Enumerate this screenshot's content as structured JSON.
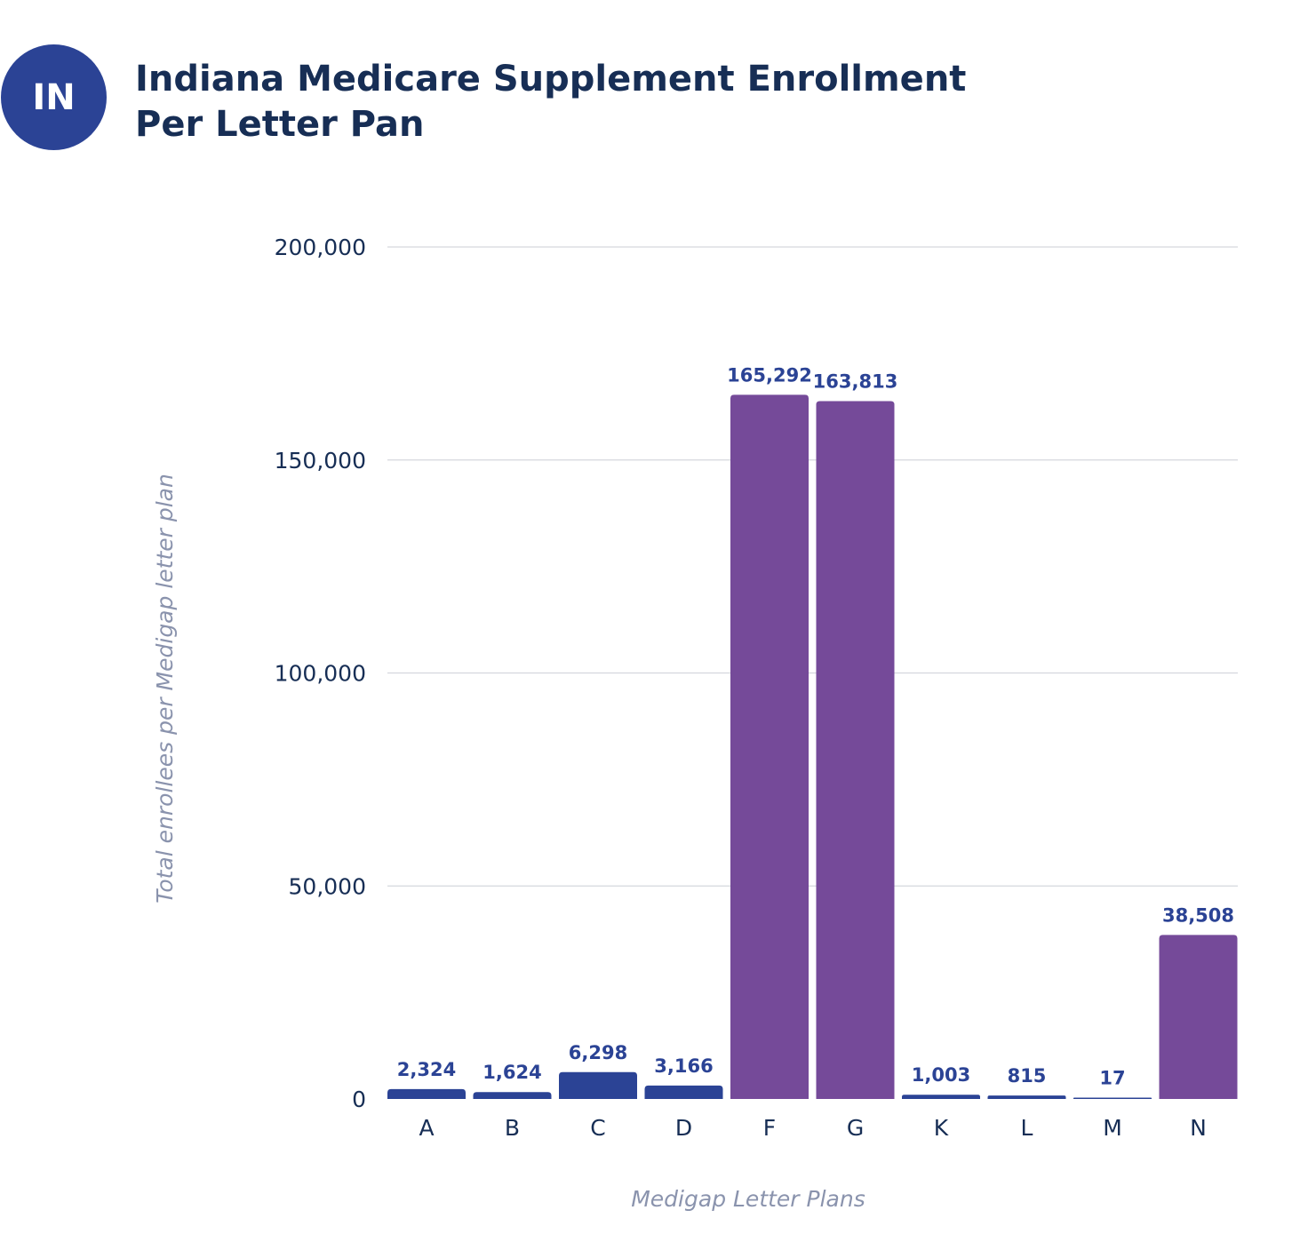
{
  "header": {
    "badge": "IN",
    "title_line1": "Indiana Medicare Supplement Enrollment",
    "title_line2": "Per Letter Pan"
  },
  "chart_data": {
    "type": "bar",
    "title": "Indiana Medicare Supplement Enrollment Per Letter Pan",
    "xlabel": "Medigap Letter Plans",
    "ylabel": "Total enrollees per Medigap letter plan",
    "categories": [
      "A",
      "B",
      "C",
      "D",
      "F",
      "G",
      "K",
      "L",
      "M",
      "N"
    ],
    "values": [
      2324,
      1624,
      6298,
      3166,
      165292,
      163813,
      1003,
      815,
      17,
      38508
    ],
    "value_labels": [
      "2,324",
      "1,624",
      "6,298",
      "3,166",
      "165,292",
      "163,813",
      "1,003",
      "815",
      "17",
      "38,508"
    ],
    "bar_colors": [
      "#2b4395",
      "#2b4395",
      "#2b4395",
      "#2b4395",
      "#754a99",
      "#754a99",
      "#2b4395",
      "#2b4395",
      "#2b4395",
      "#754a99"
    ],
    "ylim": [
      0,
      200000
    ],
    "yticks": [
      0,
      50000,
      100000,
      150000,
      200000
    ],
    "ytick_labels": [
      "0",
      "50,000",
      "100,000",
      "150,000",
      "200,000"
    ],
    "grid": true,
    "legend": "none"
  }
}
